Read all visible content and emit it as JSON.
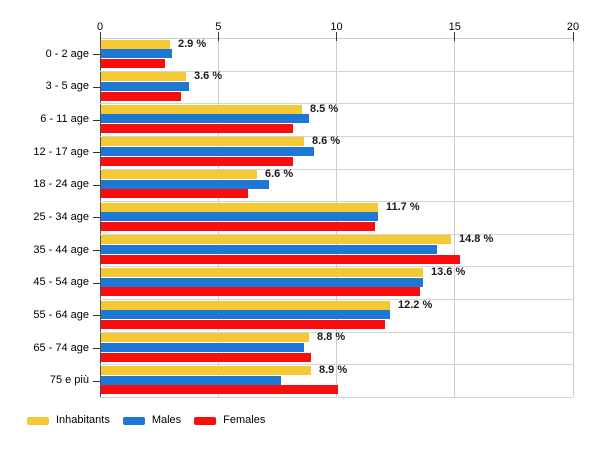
{
  "chart_data": {
    "type": "bar",
    "orientation": "horizontal",
    "title": "",
    "xlabel": "",
    "ylabel": "",
    "xlim": [
      0,
      20
    ],
    "x_ticks": [
      0,
      5,
      10,
      15,
      20
    ],
    "grid": true,
    "legend_position": "bottom-left",
    "categories": [
      "0 - 2 age",
      "3 - 5 age",
      "6 - 11 age",
      "12 - 17 age",
      "18 - 24 age",
      "25 - 34 age",
      "35 - 44 age",
      "45 - 54 age",
      "55 - 64 age",
      "65 - 74 age",
      "75 e più"
    ],
    "series": [
      {
        "name": "Inhabitants",
        "color": "#F5C933",
        "values": [
          2.9,
          3.6,
          8.5,
          8.6,
          6.6,
          11.7,
          14.8,
          13.6,
          12.2,
          8.8,
          8.9
        ]
      },
      {
        "name": "Males",
        "color": "#1D78D5",
        "values": [
          3.0,
          3.7,
          8.8,
          9.0,
          7.1,
          11.7,
          14.2,
          13.6,
          12.2,
          8.6,
          7.6
        ]
      },
      {
        "name": "Females",
        "color": "#FA0D0D",
        "values": [
          2.7,
          3.4,
          8.1,
          8.1,
          6.2,
          11.6,
          15.2,
          13.5,
          12.0,
          8.9,
          10.0
        ]
      }
    ],
    "bar_labels": [
      "2.9 %",
      "3.6 %",
      "8.5 %",
      "8.6 %",
      "6.6 %",
      "11.7 %",
      "14.8 %",
      "13.6 %",
      "12.2 %",
      "8.8 %",
      "8.9 %"
    ]
  },
  "colors": {
    "background": "#FFFFFF",
    "gridline": "#CCCCCC",
    "row_separator": "#D4D4D4",
    "axis_line": "#4D4D4D",
    "tick_text": "#000000",
    "bar_label_text": "#1A1A1A"
  },
  "legend": {
    "items": [
      {
        "label": "Inhabitants",
        "color": "#F5C933"
      },
      {
        "label": "Males",
        "color": "#1D78D5"
      },
      {
        "label": "Females",
        "color": "#FA0D0D"
      }
    ]
  }
}
